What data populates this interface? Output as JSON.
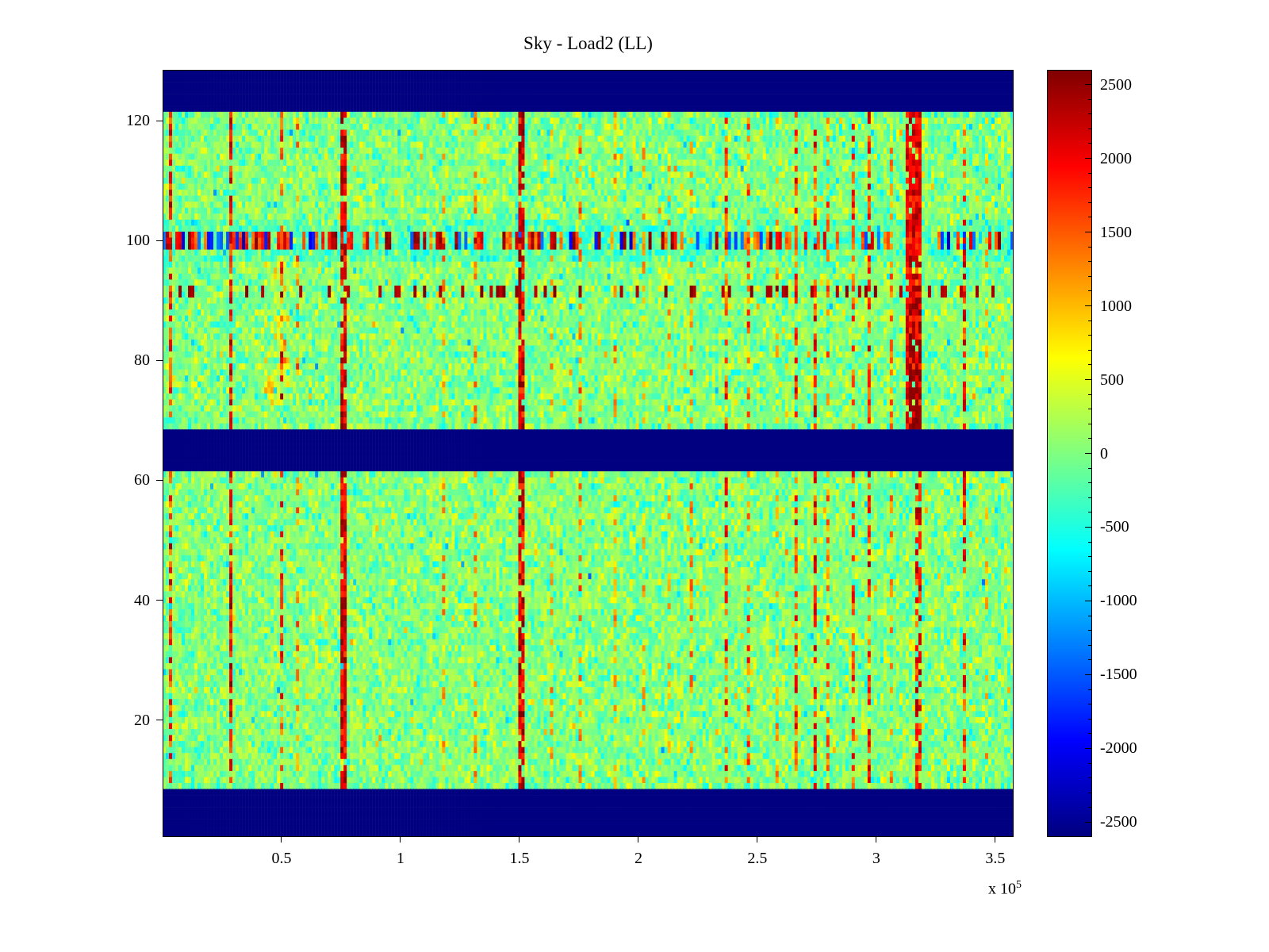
{
  "figure": {
    "background": "#ffffff"
  },
  "chart_data": {
    "type": "heatmap",
    "title": "Sky - Load2 (LL)",
    "colormap": "jet",
    "grid": false,
    "legend": "colorbar-right",
    "x_range": [
      0,
      3.577
    ],
    "x_tick_values": [
      0.5,
      1,
      1.5,
      2,
      2.5,
      3,
      3.5
    ],
    "x_tick_labels": [
      "0.5",
      "1",
      "1.5",
      "2",
      "2.5",
      "3",
      "3.5"
    ],
    "x_exponent_label": "x 10",
    "x_exponent": "5",
    "y_tick_values": [
      20,
      40,
      60,
      80,
      100,
      120
    ],
    "y_tick_labels": [
      "20",
      "40",
      "60",
      "80",
      "100",
      "120"
    ],
    "rows": 128,
    "cols": 268,
    "clim": [
      -2600,
      2600
    ],
    "masked_value": -2600,
    "colorbar_tick_values": [
      2500,
      2000,
      1500,
      1000,
      500,
      0,
      -500,
      -1000,
      -1500,
      -2000,
      -2500
    ],
    "colorbar_tick_labels": [
      "2500",
      "2000",
      "1500",
      "1000",
      "500",
      "0",
      "-500",
      "-1000",
      "-1500",
      "-2000",
      "-2500"
    ],
    "colorbar_minor_step": 100,
    "masked_row_bands": [
      [
        1,
        8
      ],
      [
        62,
        68
      ],
      [
        122,
        128
      ]
    ],
    "noise": {
      "seed": 1337,
      "mean": 20,
      "sd": 280,
      "tail_p": 0.025
    },
    "features": {
      "top_region_start": 69,
      "bottom_region_end": 61,
      "cold_tint_rows": [
        97,
        103
      ],
      "speckle_rows": [
        99,
        101
      ],
      "dash_rows": [
        91,
        92
      ],
      "hot_blob": {
        "x": [
          3.125,
          3.195
        ],
        "rows": [
          69,
          121
        ]
      },
      "hot_blob_core": {
        "x": [
          3.13,
          3.19
        ],
        "rows": [
          69,
          90
        ]
      },
      "warm_patch": {
        "x": [
          0.43,
          0.55
        ],
        "rows": [
          73,
          96
        ]
      }
    },
    "vertical_streaks": [
      {
        "x": 0.03,
        "w": 1,
        "p": 0.7,
        "lo": 1200,
        "hi": 2400,
        "region": "all"
      },
      {
        "x": 0.28,
        "w": 1,
        "p": 0.8,
        "lo": 1400,
        "hi": 2600,
        "region": "all"
      },
      {
        "x": 0.5,
        "w": 1,
        "p": 0.45,
        "lo": 1000,
        "hi": 2200,
        "region": "all"
      },
      {
        "x": 0.565,
        "w": 1,
        "p": 0.35,
        "lo": 800,
        "hi": 1800,
        "region": "all"
      },
      {
        "x": 0.745,
        "w": 2,
        "p": 0.85,
        "lo": 1600,
        "hi": 2650,
        "region": "all"
      },
      {
        "x": 1.18,
        "w": 1,
        "p": 0.3,
        "lo": 800,
        "hi": 1600,
        "region": "all"
      },
      {
        "x": 1.31,
        "w": 1,
        "p": 0.3,
        "lo": 800,
        "hi": 1600,
        "region": "all"
      },
      {
        "x": 1.49,
        "w": 2,
        "p": 0.8,
        "lo": 1500,
        "hi": 2650,
        "region": "all"
      },
      {
        "x": 1.63,
        "w": 1,
        "p": 0.25,
        "lo": 700,
        "hi": 1500,
        "region": "all"
      },
      {
        "x": 1.75,
        "w": 1,
        "p": 0.35,
        "lo": 900,
        "hi": 1800,
        "region": "all"
      },
      {
        "x": 1.9,
        "w": 1,
        "p": 0.3,
        "lo": 800,
        "hi": 1600,
        "region": "all"
      },
      {
        "x": 2.02,
        "w": 1,
        "p": 0.25,
        "lo": 700,
        "hi": 1400,
        "region": "all"
      },
      {
        "x": 2.12,
        "w": 1,
        "p": 0.3,
        "lo": 800,
        "hi": 1500,
        "region": "all"
      },
      {
        "x": 2.22,
        "w": 1,
        "p": 0.35,
        "lo": 900,
        "hi": 1700,
        "region": "all"
      },
      {
        "x": 2.36,
        "w": 1,
        "p": 0.5,
        "lo": 1100,
        "hi": 2200,
        "region": "all"
      },
      {
        "x": 2.46,
        "w": 1,
        "p": 0.45,
        "lo": 1000,
        "hi": 2000,
        "region": "all"
      },
      {
        "x": 2.57,
        "w": 1,
        "p": 0.3,
        "lo": 800,
        "hi": 1500,
        "region": "all"
      },
      {
        "x": 2.66,
        "w": 1,
        "p": 0.5,
        "lo": 1100,
        "hi": 2300,
        "region": "all"
      },
      {
        "x": 2.73,
        "w": 1,
        "p": 0.55,
        "lo": 1200,
        "hi": 2400,
        "region": "all"
      },
      {
        "x": 2.79,
        "w": 1,
        "p": 0.4,
        "lo": 900,
        "hi": 1900,
        "region": "all"
      },
      {
        "x": 2.9,
        "w": 1,
        "p": 0.5,
        "lo": 1100,
        "hi": 2200,
        "region": "all"
      },
      {
        "x": 2.96,
        "w": 1,
        "p": 0.55,
        "lo": 1200,
        "hi": 2400,
        "region": "all"
      },
      {
        "x": 3.06,
        "w": 1,
        "p": 0.35,
        "lo": 900,
        "hi": 1700,
        "region": "all"
      },
      {
        "x": 3.16,
        "w": 2,
        "p": 0.6,
        "lo": 1300,
        "hi": 2500,
        "region": "all"
      },
      {
        "x": 3.37,
        "w": 1,
        "p": 0.55,
        "lo": 1200,
        "hi": 2400,
        "region": "all"
      },
      {
        "x": 3.46,
        "w": 1,
        "p": 0.25,
        "lo": 700,
        "hi": 1400,
        "region": "all"
      }
    ]
  }
}
